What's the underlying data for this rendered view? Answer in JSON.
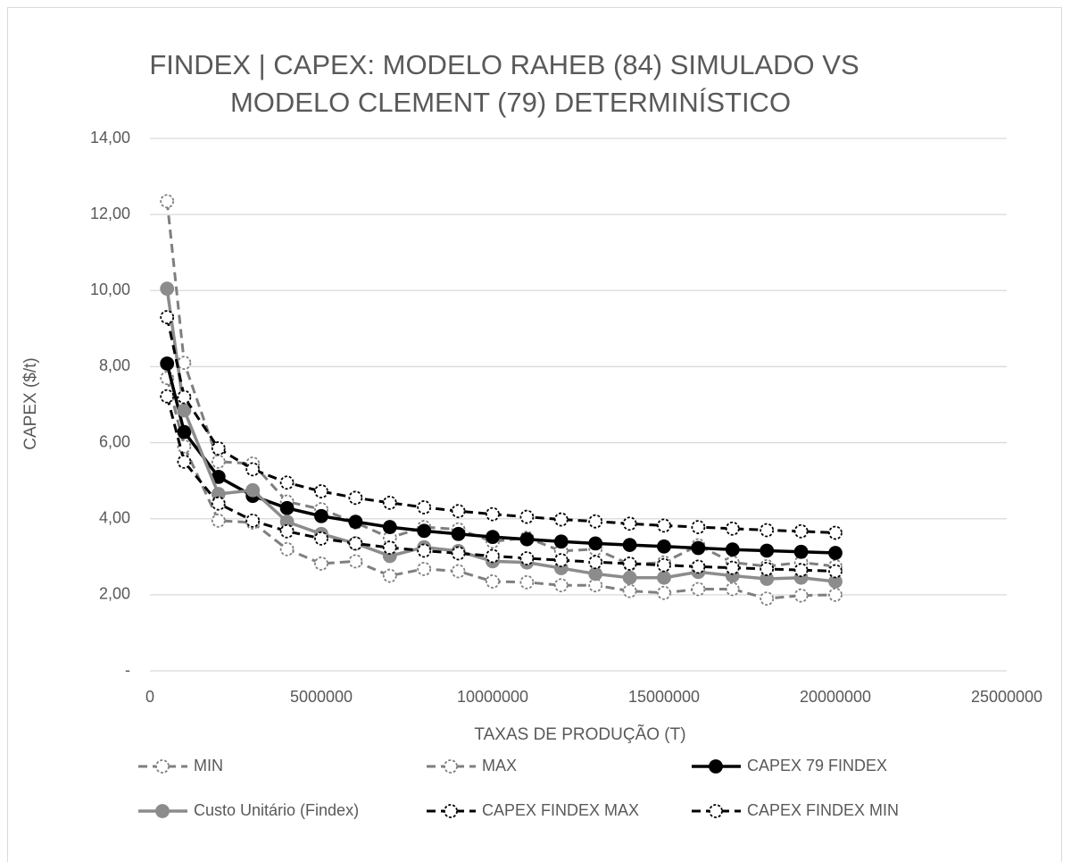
{
  "chart_data": {
    "type": "line",
    "title": [
      "FINDEX | CAPEX: MODELO RAHEB (84) SIMULADO VS",
      "MODELO CLEMENT (79) DETERMINÍSTICO"
    ],
    "x_label": "TAXAS DE PRODUÇÃO (T)",
    "y_label": "CAPEX ($/t)",
    "x": [
      500000,
      1000000,
      2000000,
      3000000,
      4000000,
      5000000,
      6000000,
      7000000,
      8000000,
      9000000,
      10000000,
      11000000,
      12000000,
      13000000,
      14000000,
      15000000,
      16000000,
      17000000,
      18000000,
      19000000,
      20000000
    ],
    "xlim": [
      0,
      25000000
    ],
    "xticks": [
      0,
      5000000,
      10000000,
      15000000,
      20000000,
      25000000
    ],
    "ylim": [
      0,
      14
    ],
    "yticks": [
      {
        "value": 0,
        "label": "-"
      },
      {
        "value": 2,
        "label": "2,00"
      },
      {
        "value": 4,
        "label": "4,00"
      },
      {
        "value": 6,
        "label": "6,00"
      },
      {
        "value": 8,
        "label": "8,00"
      },
      {
        "value": 10,
        "label": "10,00"
      },
      {
        "value": 12,
        "label": "12,00"
      },
      {
        "value": 14,
        "label": "14,00"
      }
    ],
    "grid": true,
    "legend": "bottom",
    "series": [
      {
        "name": "MIN",
        "color": "#7f7f7f",
        "dashed": true,
        "marker": "open",
        "values": [
          7.7,
          5.9,
          3.95,
          3.9,
          3.2,
          2.82,
          2.88,
          2.5,
          2.68,
          2.62,
          2.35,
          2.33,
          2.25,
          2.25,
          2.1,
          2.05,
          2.15,
          2.15,
          1.9,
          1.98,
          2.0
        ]
      },
      {
        "name": "MAX",
        "color": "#7f7f7f",
        "dashed": true,
        "marker": "open",
        "values": [
          12.35,
          8.1,
          5.5,
          5.45,
          4.45,
          4.25,
          3.9,
          3.5,
          3.78,
          3.72,
          3.4,
          3.5,
          3.15,
          3.2,
          2.8,
          2.85,
          3.3,
          2.85,
          2.75,
          2.85,
          2.75
        ]
      },
      {
        "name": "CAPEX 79 FINDEX",
        "color": "#000000",
        "dashed": false,
        "marker": "filled",
        "values": [
          8.08,
          6.28,
          5.1,
          4.6,
          4.28,
          4.07,
          3.92,
          3.78,
          3.68,
          3.6,
          3.52,
          3.46,
          3.4,
          3.35,
          3.31,
          3.27,
          3.23,
          3.19,
          3.16,
          3.13,
          3.1
        ]
      },
      {
        "name": "Custo Unitário (Findex)",
        "color": "#8c8c8c",
        "dashed": false,
        "marker": "filled",
        "values": [
          10.05,
          6.85,
          4.65,
          4.75,
          3.92,
          3.6,
          3.35,
          3.02,
          3.25,
          3.15,
          2.88,
          2.85,
          2.7,
          2.55,
          2.45,
          2.45,
          2.6,
          2.5,
          2.42,
          2.45,
          2.35
        ]
      },
      {
        "name": "CAPEX FINDEX MAX",
        "color": "#000000",
        "dashed": true,
        "marker": "open",
        "values": [
          9.3,
          7.2,
          5.85,
          5.3,
          4.95,
          4.72,
          4.55,
          4.42,
          4.3,
          4.2,
          4.12,
          4.05,
          3.98,
          3.93,
          3.87,
          3.82,
          3.78,
          3.74,
          3.7,
          3.67,
          3.63
        ]
      },
      {
        "name": "CAPEX FINDEX MIN",
        "color": "#000000",
        "dashed": true,
        "marker": "open",
        "values": [
          7.22,
          5.5,
          4.4,
          3.95,
          3.67,
          3.48,
          3.35,
          3.24,
          3.16,
          3.09,
          3.02,
          2.96,
          2.91,
          2.86,
          2.82,
          2.78,
          2.74,
          2.71,
          2.68,
          2.65,
          2.62
        ]
      }
    ]
  }
}
